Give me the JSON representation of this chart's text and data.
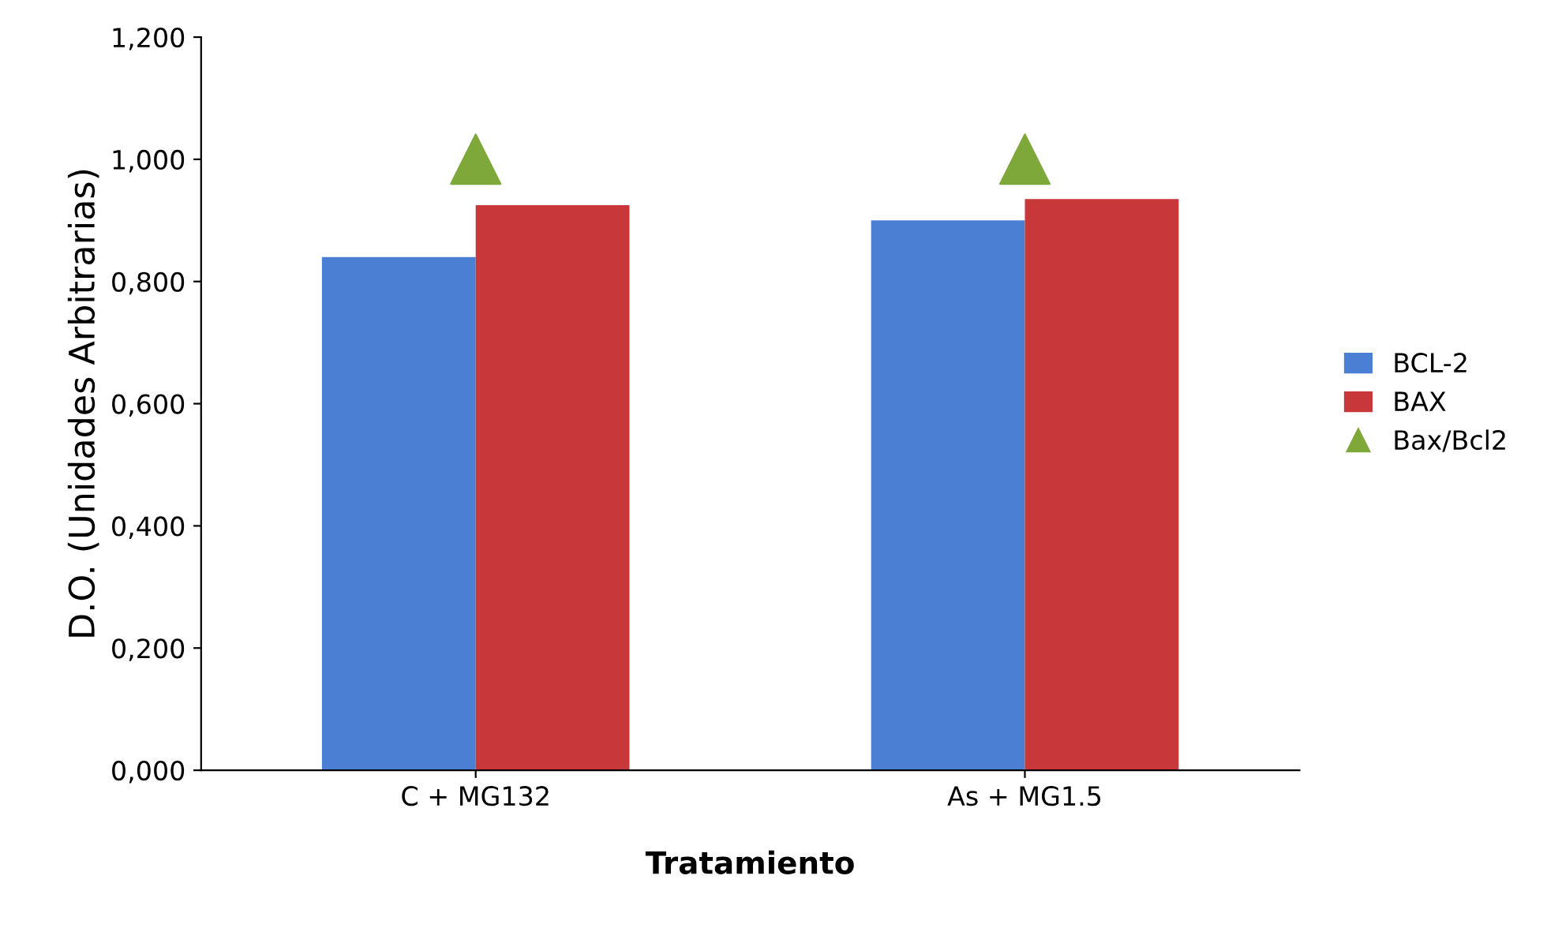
{
  "chart_data": {
    "type": "bar",
    "xlabel": "Tratamiento",
    "ylabel": "D.O. (Unidades Arbitrarias)",
    "categories": [
      "C + MG132",
      "As + MG1.5"
    ],
    "series": [
      {
        "name": "BCL-2",
        "color": "#4a7fd4",
        "values": [
          0.84,
          0.9
        ]
      },
      {
        "name": "BAX",
        "color": "#c8373a",
        "values": [
          0.925,
          0.935
        ]
      },
      {
        "name": "Bax/Bcl2",
        "color": "#7fa83a",
        "type": "scatter",
        "marker": "triangle",
        "x": [
          "C + MG132",
          "As + MG1.5"
        ],
        "values": [
          1.0,
          1.0
        ]
      }
    ],
    "ylim": [
      0,
      1.2
    ],
    "yticks": [
      {
        "value": 0,
        "label": "0,000"
      },
      {
        "value": 0.2,
        "label": "0,200"
      },
      {
        "value": 0.4,
        "label": "0,400"
      },
      {
        "value": 0.6,
        "label": "0,600"
      },
      {
        "value": 0.8,
        "label": "0,800"
      },
      {
        "value": 1.0,
        "label": "1,000"
      },
      {
        "value": 1.2,
        "label": "1,200"
      }
    ],
    "grid": false,
    "legend": "right"
  }
}
